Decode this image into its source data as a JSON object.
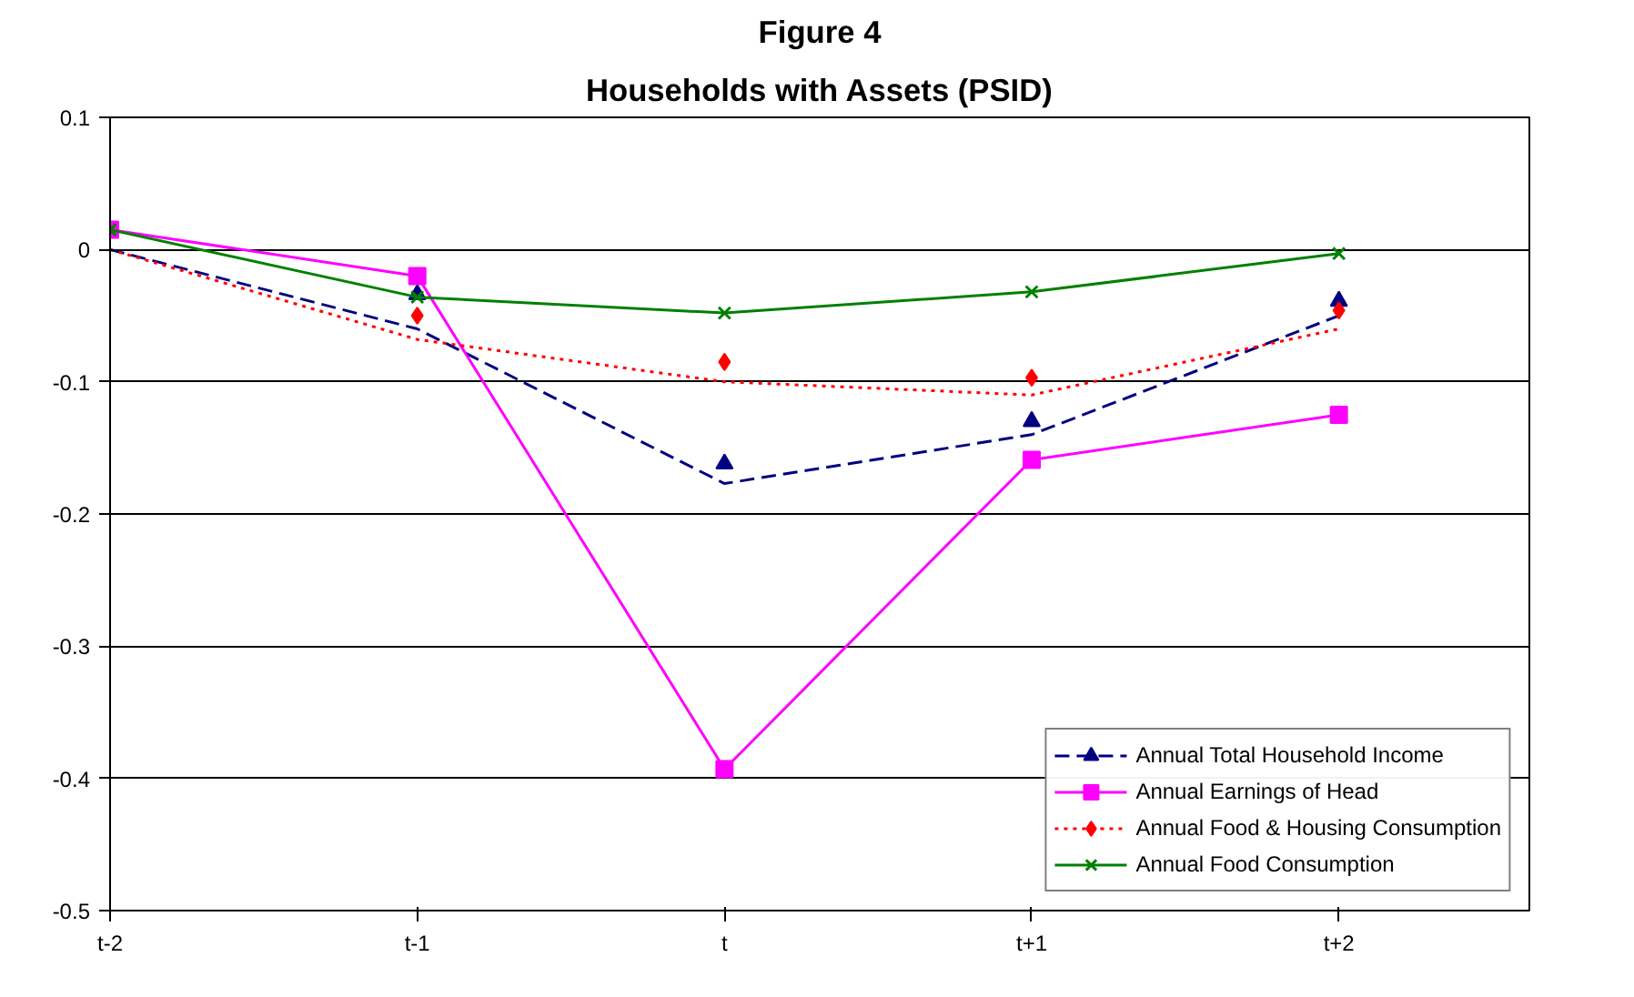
{
  "chart_data": {
    "type": "line",
    "title": "Figure 4",
    "subtitle": "Households with Assets (PSID)",
    "categories": [
      "t-2",
      "t-1",
      "t",
      "t+1",
      "t+2"
    ],
    "ylim": [
      -0.5,
      0.1
    ],
    "yticks": [
      -0.5,
      -0.4,
      -0.3,
      -0.2,
      -0.1,
      0,
      0.1
    ],
    "grid": "y",
    "legend": "bottom right",
    "series": [
      {
        "name": "Annual Total Household Income",
        "type": "scatter",
        "marker": "triangle",
        "color": "#000080",
        "values": [
          null,
          -0.034,
          -0.162,
          -0.13,
          -0.039
        ]
      },
      {
        "line_style": "dashed",
        "color": "#000080",
        "values": [
          0,
          -0.06,
          -0.177,
          -0.14,
          -0.05
        ]
      },
      {
        "name": "Annual Earnings of Head",
        "line_style": "solid",
        "marker": "square",
        "color": "#ff00ff",
        "values": [
          0.015,
          -0.02,
          -0.393,
          -0.159,
          -0.125
        ]
      },
      {
        "name": "Annual Food & Housing Consumption",
        "type": "scatter",
        "marker": "diamond",
        "color": "#ff0000",
        "values": [
          null,
          -0.05,
          -0.085,
          -0.097,
          -0.046
        ]
      },
      {
        "line_style": "dotted",
        "color": "#ff0000",
        "values": [
          0,
          -0.068,
          -0.1,
          -0.11,
          -0.06
        ]
      },
      {
        "name": "Annual Food Consumption",
        "line_style": "solid",
        "marker": "cross",
        "color": "#008000",
        "values": [
          0.015,
          -0.036,
          -0.048,
          -0.032,
          -0.003
        ]
      }
    ]
  }
}
